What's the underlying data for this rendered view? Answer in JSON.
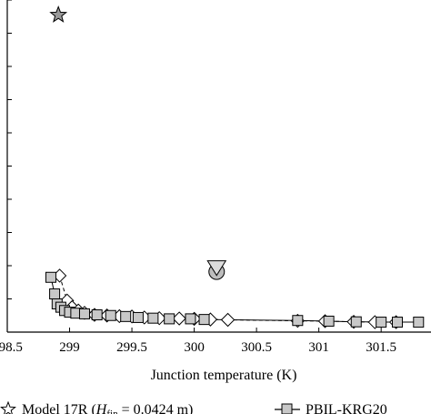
{
  "chart_data": {
    "type": "scatter",
    "title": "",
    "xlabel": "Junction temperature (K)",
    "ylabel": "",
    "xlim": [
      298.5,
      301.9
    ],
    "ylim": [
      0,
      1
    ],
    "x_ticks": [
      "298.5",
      "299",
      "299.5",
      "300",
      "300.5",
      "301",
      "301.5"
    ],
    "x_tick_values": [
      298.5,
      299.0,
      299.5,
      300.0,
      300.5,
      301.0,
      301.5
    ],
    "y_tick_values": [
      0.1,
      0.2,
      0.3,
      0.4,
      0.5,
      0.6,
      0.7,
      0.8,
      0.9,
      1.0
    ],
    "grid": false,
    "legend_position": "bottom",
    "legend": {
      "model_prefix": "Model 17R (",
      "model_h": "H",
      "model_sub": "fin",
      "model_suffix": " = 0.0424 m)",
      "pbil": "PBIL-KRG20"
    },
    "series": [
      {
        "name": "Model 17R",
        "marker": "star",
        "color": "#9a9a9a",
        "points": [
          [
            298.91,
            0.955
          ]
        ]
      },
      {
        "marker": "triangle-circle",
        "color": "#bdbdbd",
        "points": [
          [
            300.18,
            0.19
          ]
        ]
      },
      {
        "marker": "diamond-dashed",
        "color": "#ffffff",
        "points": [
          [
            298.92,
            0.17
          ],
          [
            298.98,
            0.095
          ],
          [
            299.02,
            0.075
          ],
          [
            299.07,
            0.065
          ],
          [
            299.12,
            0.058
          ],
          [
            299.2,
            0.052
          ],
          [
            299.3,
            0.05
          ],
          [
            299.4,
            0.048
          ],
          [
            299.5,
            0.047
          ],
          [
            299.6,
            0.044
          ],
          [
            299.72,
            0.042
          ],
          [
            299.88,
            0.041
          ],
          [
            300.0,
            0.04
          ],
          [
            300.13,
            0.038
          ],
          [
            300.27,
            0.037
          ],
          [
            300.83,
            0.034
          ],
          [
            301.05,
            0.033
          ],
          [
            301.28,
            0.031
          ],
          [
            301.45,
            0.03
          ],
          [
            301.62,
            0.03
          ]
        ]
      },
      {
        "name": "PBIL-KRG20",
        "marker": "square-line",
        "color": "#c8c8c8",
        "points": [
          [
            298.85,
            0.165
          ],
          [
            298.88,
            0.115
          ],
          [
            298.9,
            0.085
          ],
          [
            298.93,
            0.075
          ],
          [
            298.96,
            0.065
          ],
          [
            299.0,
            0.06
          ],
          [
            299.05,
            0.057
          ],
          [
            299.12,
            0.055
          ],
          [
            299.22,
            0.052
          ],
          [
            299.33,
            0.05
          ],
          [
            299.45,
            0.047
          ],
          [
            299.55,
            0.044
          ],
          [
            299.67,
            0.042
          ],
          [
            299.8,
            0.04
          ],
          [
            299.97,
            0.04
          ],
          [
            300.08,
            0.038
          ],
          [
            300.83,
            0.035
          ],
          [
            301.08,
            0.033
          ],
          [
            301.3,
            0.031
          ],
          [
            301.5,
            0.03
          ],
          [
            301.63,
            0.03
          ],
          [
            301.8,
            0.03
          ]
        ]
      }
    ]
  }
}
